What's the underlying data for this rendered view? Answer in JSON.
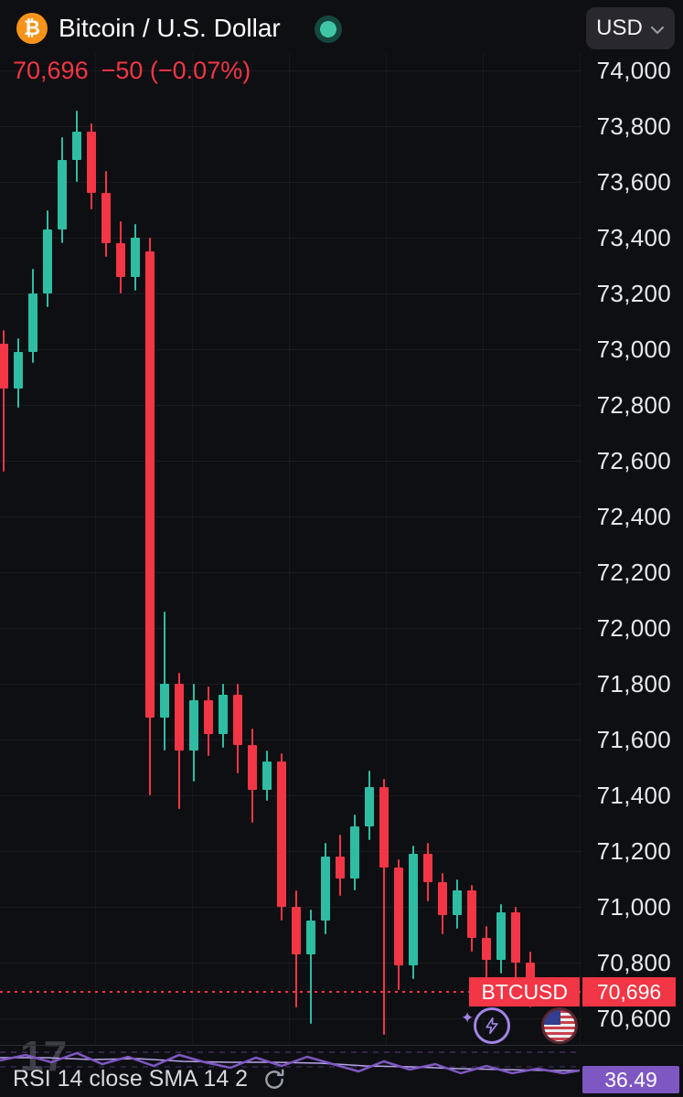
{
  "header": {
    "symbol_title": "Bitcoin / U.S. Dollar",
    "market_status": "open",
    "currency_button": "USD",
    "price": "70,696",
    "change": "−50 (−0.07%)"
  },
  "price_line": {
    "symbol_label": "BTCUSD",
    "price_label": "70,696"
  },
  "indicator": {
    "label": "RSI 14 close SMA 14 2",
    "value": "36.49"
  },
  "watermark": "17",
  "colors": {
    "up": "#2ebda3",
    "down": "#f23645",
    "accent_purple": "#7e57c2",
    "bitcoin_orange": "#f7931a",
    "status_teal": "#3fc6a6"
  },
  "chart_data": {
    "type": "candlestick",
    "symbol": "BTCUSD",
    "title": "Bitcoin / U.S. Dollar",
    "currency": "USD",
    "last_price": 70696,
    "change": -50,
    "change_pct": -0.07,
    "up_color": "#2ebda3",
    "down_color": "#f23645",
    "y_axis": {
      "tick_interval": 200,
      "visible_range": [
        70500,
        74100
      ],
      "ticks": [
        {
          "label": "74,000",
          "value": 74000
        },
        {
          "label": "73,800",
          "value": 73800
        },
        {
          "label": "73,600",
          "value": 73600
        },
        {
          "label": "73,400",
          "value": 73400
        },
        {
          "label": "73,200",
          "value": 73200
        },
        {
          "label": "73,000",
          "value": 73000
        },
        {
          "label": "72,800",
          "value": 72800
        },
        {
          "label": "72,600",
          "value": 72600
        },
        {
          "label": "72,400",
          "value": 72400
        },
        {
          "label": "72,200",
          "value": 72200
        },
        {
          "label": "72,000",
          "value": 72000
        },
        {
          "label": "71,800",
          "value": 71800
        },
        {
          "label": "71,600",
          "value": 71600
        },
        {
          "label": "71,400",
          "value": 71400
        },
        {
          "label": "71,200",
          "value": 71200
        },
        {
          "label": "71,000",
          "value": 71000
        },
        {
          "label": "70,800",
          "value": 70800
        },
        {
          "label": "70,600",
          "value": 70600
        }
      ]
    },
    "candles": [
      [
        73020,
        73070,
        72560,
        72860
      ],
      [
        72860,
        73040,
        72790,
        72990
      ],
      [
        72990,
        73290,
        72950,
        73200
      ],
      [
        73200,
        73500,
        73150,
        73430
      ],
      [
        73430,
        73760,
        73380,
        73680
      ],
      [
        73680,
        73855,
        73600,
        73780
      ],
      [
        73780,
        73810,
        73500,
        73560
      ],
      [
        73560,
        73640,
        73330,
        73380
      ],
      [
        73380,
        73460,
        73200,
        73260
      ],
      [
        73260,
        73450,
        73210,
        73400
      ],
      [
        73350,
        73400,
        71400,
        71680
      ],
      [
        71680,
        72060,
        71560,
        71800
      ],
      [
        71800,
        71840,
        71350,
        71560
      ],
      [
        71560,
        71800,
        71450,
        71740
      ],
      [
        71740,
        71790,
        71540,
        71620
      ],
      [
        71620,
        71800,
        71570,
        71760
      ],
      [
        71760,
        71800,
        71480,
        71580
      ],
      [
        71580,
        71640,
        71300,
        71420
      ],
      [
        71420,
        71560,
        71380,
        71520
      ],
      [
        71520,
        71550,
        70950,
        71000
      ],
      [
        71000,
        71060,
        70640,
        70830
      ],
      [
        70830,
        70990,
        70580,
        70950
      ],
      [
        70950,
        71230,
        70900,
        71180
      ],
      [
        71180,
        71260,
        71040,
        71100
      ],
      [
        71100,
        71330,
        71060,
        71290
      ],
      [
        71290,
        71490,
        71240,
        71430
      ],
      [
        71430,
        71460,
        70540,
        71140
      ],
      [
        71140,
        71170,
        70700,
        70790
      ],
      [
        70790,
        71220,
        70740,
        71190
      ],
      [
        71190,
        71230,
        71020,
        71090
      ],
      [
        71090,
        71120,
        70900,
        70970
      ],
      [
        70970,
        71100,
        70920,
        71060
      ],
      [
        71060,
        71080,
        70840,
        70890
      ],
      [
        70890,
        70930,
        70740,
        70810
      ],
      [
        70810,
        71010,
        70760,
        70980
      ],
      [
        70980,
        71000,
        70720,
        70800
      ],
      [
        70800,
        70840,
        70640,
        70696
      ]
    ],
    "indicator": {
      "name": "RSI",
      "length": 14,
      "source": "close",
      "smoothing": "SMA 14",
      "value": 36.49
    }
  }
}
